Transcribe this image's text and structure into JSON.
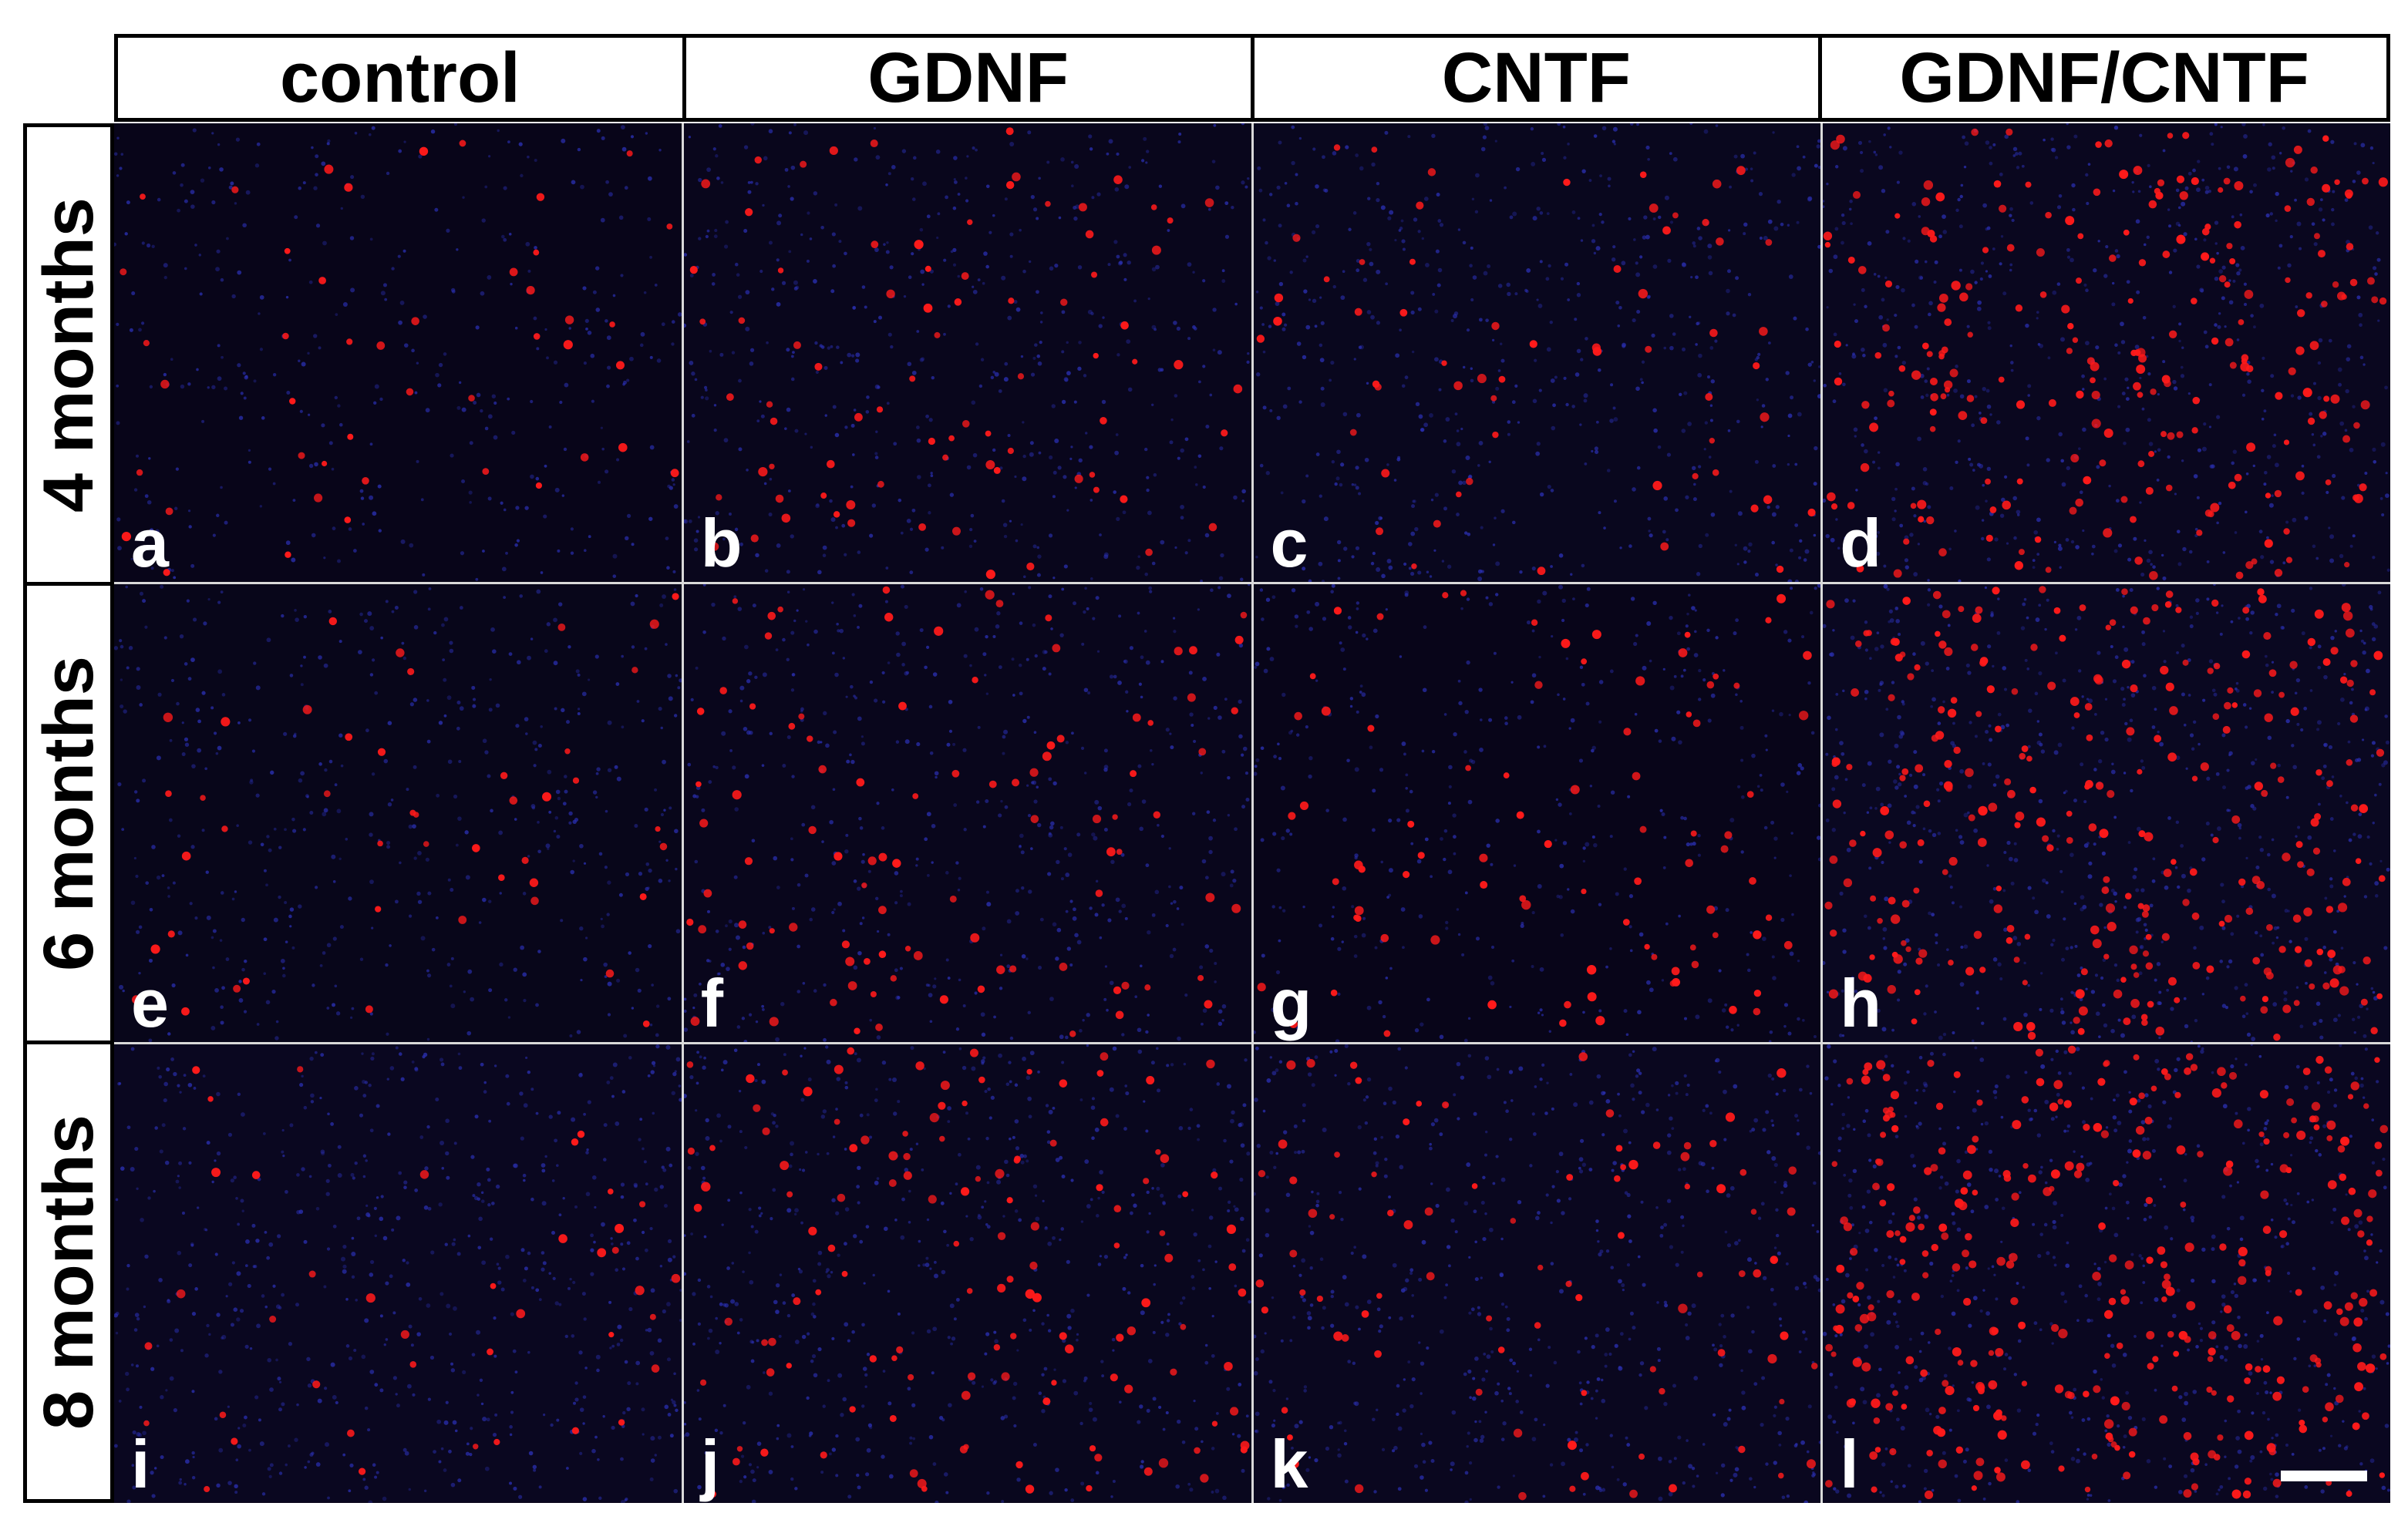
{
  "columns": [
    "control",
    "GDNF",
    "CNTF",
    "GDNF/CNTF"
  ],
  "rows": [
    "4 months",
    "6 months",
    "8 months"
  ],
  "panels": [
    {
      "label": "a",
      "red_cells": 45,
      "blue_density": 0.55
    },
    {
      "label": "b",
      "red_cells": 80,
      "blue_density": 0.75
    },
    {
      "label": "c",
      "red_cells": 60,
      "blue_density": 0.85
    },
    {
      "label": "d",
      "red_cells": 230,
      "blue_density": 0.9
    },
    {
      "label": "e",
      "red_cells": 45,
      "blue_density": 0.7
    },
    {
      "label": "f",
      "red_cells": 95,
      "blue_density": 0.75
    },
    {
      "label": "g",
      "red_cells": 85,
      "blue_density": 0.6
    },
    {
      "label": "h",
      "red_cells": 280,
      "blue_density": 1.0
    },
    {
      "label": "i",
      "red_cells": 40,
      "blue_density": 0.95
    },
    {
      "label": "j",
      "red_cells": 125,
      "blue_density": 0.85
    },
    {
      "label": "k",
      "red_cells": 85,
      "blue_density": 0.9
    },
    {
      "label": "l",
      "red_cells": 330,
      "blue_density": 0.95
    }
  ],
  "colors": {
    "background": "#06030e",
    "nuclei_blue": "#2a2fb0",
    "cell_red": "#ff1a1a",
    "divider": "#d9d9d9",
    "label": "#ffffff"
  }
}
